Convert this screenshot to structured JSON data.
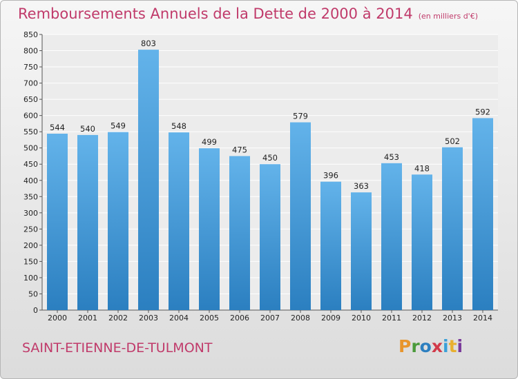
{
  "title": "Remboursements Annuels de la Dette de 2000 à 2014",
  "subtitle": "(en milliers d'€)",
  "town": "SAINT-ETIENNE-DE-TULMONT",
  "logo": {
    "letters": [
      "P",
      "r",
      "o",
      "x",
      "i",
      "t",
      "i"
    ],
    "colors": [
      "#e8952c",
      "#4a9a3a",
      "#2d7fc0",
      "#d13a4a",
      "#3aa0d8",
      "#e8b030",
      "#7a3a9a"
    ]
  },
  "colors": {
    "bar_light": "#63b3ea",
    "bar_dark": "#2b7fc0",
    "title": "#c03a6a"
  },
  "chart_data": {
    "type": "bar",
    "categories": [
      "2000",
      "2001",
      "2002",
      "2003",
      "2004",
      "2005",
      "2006",
      "2007",
      "2008",
      "2009",
      "2010",
      "2011",
      "2012",
      "2013",
      "2014"
    ],
    "values": [
      544,
      540,
      549,
      803,
      548,
      499,
      475,
      450,
      579,
      396,
      363,
      453,
      418,
      502,
      592
    ],
    "ylim": [
      0,
      850
    ],
    "yticks": [
      0,
      50,
      100,
      150,
      200,
      250,
      300,
      350,
      400,
      450,
      500,
      550,
      600,
      650,
      700,
      750,
      800,
      850
    ],
    "grid": true
  }
}
